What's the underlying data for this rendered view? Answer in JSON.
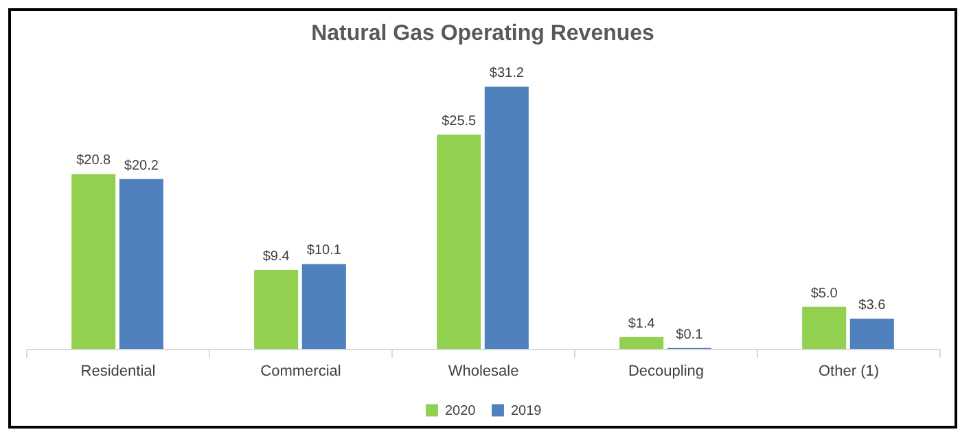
{
  "chart_data": {
    "type": "bar",
    "title": "Natural Gas Operating Revenues",
    "categories": [
      "Residential",
      "Commercial",
      "Wholesale",
      "Decoupling",
      "Other (1)"
    ],
    "series": [
      {
        "name": "2020",
        "color": "#92d050",
        "values": [
          20.8,
          9.4,
          25.5,
          1.4,
          5.0
        ],
        "value_labels": [
          "$20.8",
          "$9.4",
          "$25.5",
          "$1.4",
          "$5.0"
        ]
      },
      {
        "name": "2019",
        "color": "#4f81bd",
        "values": [
          20.2,
          10.1,
          31.2,
          0.1,
          3.6
        ],
        "value_labels": [
          "$20.2",
          "$10.1",
          "$31.2",
          "$0.1",
          "$3.6"
        ]
      }
    ],
    "legend": "bottom"
  }
}
